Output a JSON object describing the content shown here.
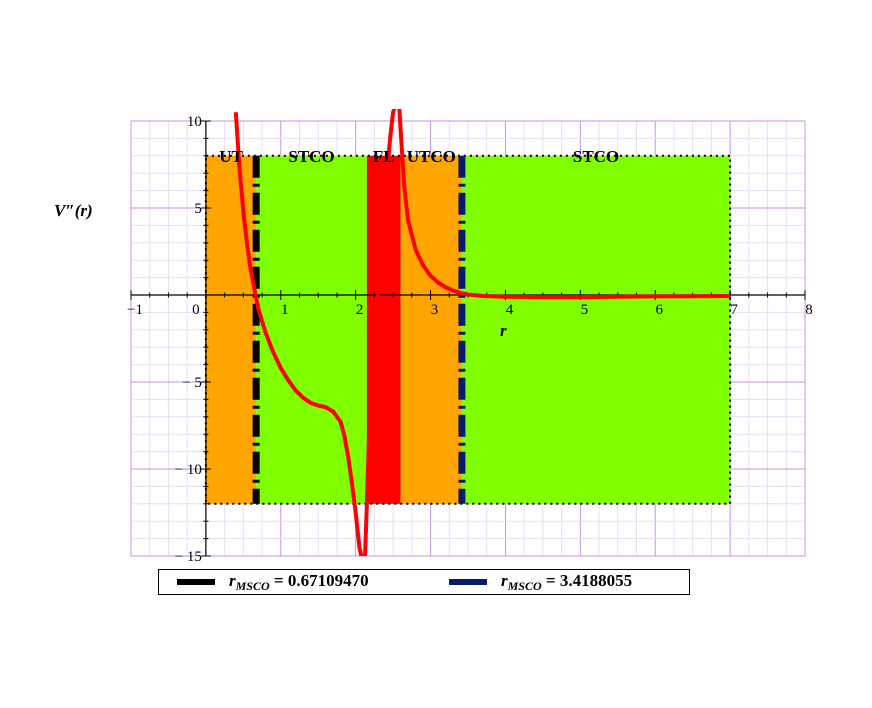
{
  "chart_data": {
    "type": "line",
    "xlabel": "r",
    "ylabel": "V″(r)",
    "xlim": [
      -1,
      8
    ],
    "ylim": [
      -15,
      10
    ],
    "x_ticks": [
      "−1",
      "0",
      "1",
      "2",
      "3",
      "4",
      "5",
      "6",
      "7",
      "8"
    ],
    "y_ticks": [
      "10",
      "5",
      "− 5",
      "− 10",
      "− 15"
    ],
    "grid": true,
    "regions": [
      {
        "name": "UTCO",
        "label": "UT",
        "x0": 0.0,
        "x1": 0.671,
        "y0": -12,
        "y1": 8,
        "color": "#FFA500"
      },
      {
        "name": "STCO",
        "label": "STCO",
        "x0": 0.671,
        "x1": 2.15,
        "y0": -12,
        "y1": 8,
        "color": "#7FFF00"
      },
      {
        "name": "FL",
        "label": "FL",
        "x0": 2.15,
        "x1": 2.6,
        "y0": -12,
        "y1": 8,
        "color": "#FF0000"
      },
      {
        "name": "UTCO",
        "label": "UTCO",
        "x0": 2.6,
        "x1": 3.419,
        "y0": -12,
        "y1": 8,
        "color": "#FFA500"
      },
      {
        "name": "STCO",
        "label": "STCO",
        "x0": 3.419,
        "x1": 7.0,
        "y0": -12,
        "y1": 8,
        "color": "#7FFF00"
      }
    ],
    "vertical_lines": [
      {
        "x": 0.6710947,
        "color": "#000000",
        "style": "dashdot"
      },
      {
        "x": 3.4188055,
        "color": "#0A1A6B",
        "style": "dashdot"
      }
    ],
    "series": [
      {
        "color": "#FF0000",
        "segments": [
          {
            "x": [
              0.4,
              0.45,
              0.5,
              0.55,
              0.6,
              0.65,
              0.7,
              0.75,
              0.8,
              0.9,
              1.0,
              1.1,
              1.2,
              1.3,
              1.4,
              1.5,
              1.6,
              1.7,
              1.8,
              1.85,
              1.9,
              1.95,
              2.0,
              2.05,
              2.1
            ],
            "y": [
              10.5,
              7.2,
              4.8,
              2.9,
              1.4,
              0.3,
              -0.8,
              -1.5,
              -2.2,
              -3.3,
              -4.2,
              -4.9,
              -5.5,
              -5.9,
              -6.2,
              -6.35,
              -6.45,
              -6.7,
              -7.3,
              -8.1,
              -9.3,
              -10.8,
              -12.5,
              -14.5,
              -15.5
            ]
          },
          {
            "x": [
              2.12,
              2.15,
              2.18,
              2.22,
              2.3,
              2.38,
              2.42,
              2.46,
              2.5,
              2.54
            ],
            "y": [
              -15.5,
              -12,
              -8,
              -4,
              0,
              4,
              7,
              9,
              10.5,
              11
            ]
          },
          {
            "x": [
              2.58,
              2.6,
              2.65,
              2.7,
              2.8,
              2.9,
              3.0,
              3.1,
              3.2,
              3.3,
              3.4,
              3.5,
              3.7,
              4.0,
              4.5,
              5.0,
              5.5,
              6.0,
              6.5,
              7.0
            ],
            "y": [
              11,
              9.5,
              6.2,
              4.3,
              2.6,
              1.7,
              1.1,
              0.72,
              0.45,
              0.26,
              0.12,
              0.03,
              -0.06,
              -0.1,
              -0.12,
              -0.12,
              -0.1,
              -0.08,
              -0.07,
              -0.06
            ]
          }
        ]
      }
    ],
    "legend": {
      "position": "bottom",
      "entries": [
        {
          "symbol": "r",
          "subscript": "MSCO",
          "value": " = 0.67109470",
          "color": "#000000"
        },
        {
          "symbol": "r",
          "subscript": "MSCO",
          "value": " = 3.4188055",
          "color": "#0A1A6B"
        }
      ]
    }
  }
}
